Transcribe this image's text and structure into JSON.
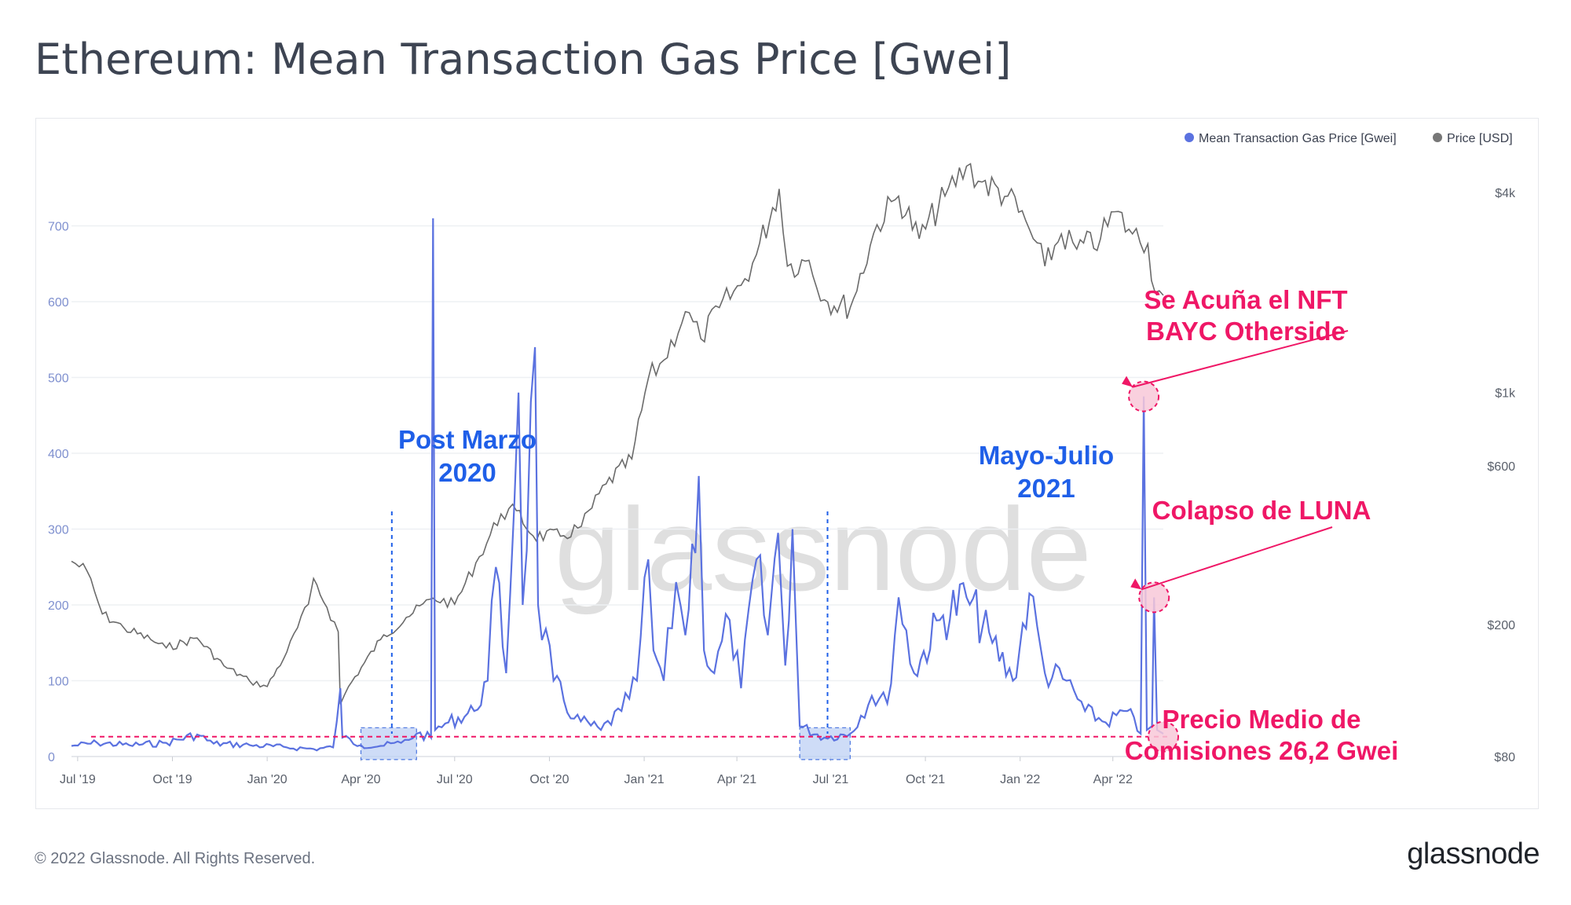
{
  "title": "Ethereum: Mean Transaction Gas Price [Gwei]",
  "footer": {
    "copyright": "© 2022 Glassnode. All Rights Reserved.",
    "logo": "glassnode"
  },
  "watermark": "glassnode",
  "colors": {
    "gas": "#5b72e0",
    "price": "#6b6b6b",
    "pink": "#ef1766",
    "blue": "#1f5fe8"
  },
  "chart_data": {
    "type": "line",
    "legend": [
      {
        "name": "Mean Transaction Gas Price [Gwei]",
        "color": "#5b72e0"
      },
      {
        "name": "Price [USD]",
        "color": "#777777"
      }
    ],
    "legend_placement": "top-right",
    "grid": true,
    "y_left": {
      "ticks": [
        "0",
        "100",
        "200",
        "300",
        "400",
        "500",
        "600",
        "700"
      ],
      "range": [
        0,
        800
      ]
    },
    "y_right": {
      "ticks": [
        "$80",
        "$200",
        "$600",
        "$1k",
        "$4k"
      ],
      "scale": "log"
    },
    "x_ticks": [
      "Jul '19",
      "Oct '19",
      "Jan '20",
      "Apr '20",
      "Jul '20",
      "Oct '20",
      "Jan '21",
      "Apr '21",
      "Jul '21",
      "Oct '21",
      "Jan '22",
      "Apr '22"
    ],
    "x_range": [
      "2019-06-25",
      "2022-05-20"
    ],
    "series": [
      {
        "name": "Mean Transaction Gas Price [Gwei]",
        "axis": "left",
        "points": [
          [
            "2019-06-25",
            14
          ],
          [
            "2019-07-20",
            18
          ],
          [
            "2019-08-20",
            15
          ],
          [
            "2019-09-25",
            18
          ],
          [
            "2019-10-25",
            29
          ],
          [
            "2019-11-10",
            17
          ],
          [
            "2019-12-15",
            15
          ],
          [
            "2020-01-20",
            12
          ],
          [
            "2020-02-15",
            10
          ],
          [
            "2020-03-05",
            12
          ],
          [
            "2020-03-12",
            90
          ],
          [
            "2020-03-14",
            25
          ],
          [
            "2020-04-01",
            15
          ],
          [
            "2020-04-20",
            14
          ],
          [
            "2020-05-10",
            18
          ],
          [
            "2020-05-25",
            30
          ],
          [
            "2020-06-08",
            25
          ],
          [
            "2020-06-10",
            710
          ],
          [
            "2020-06-12",
            35
          ],
          [
            "2020-06-25",
            45
          ],
          [
            "2020-07-20",
            60
          ],
          [
            "2020-08-02",
            100
          ],
          [
            "2020-08-10",
            250
          ],
          [
            "2020-08-20",
            110
          ],
          [
            "2020-09-01",
            480
          ],
          [
            "2020-09-05",
            200
          ],
          [
            "2020-09-17",
            540
          ],
          [
            "2020-09-20",
            200
          ],
          [
            "2020-10-05",
            100
          ],
          [
            "2020-10-25",
            50
          ],
          [
            "2020-11-20",
            35
          ],
          [
            "2020-12-10",
            60
          ],
          [
            "2020-12-25",
            100
          ],
          [
            "2021-01-05",
            260
          ],
          [
            "2021-01-10",
            140
          ],
          [
            "2021-01-20",
            100
          ],
          [
            "2021-02-01",
            230
          ],
          [
            "2021-02-10",
            160
          ],
          [
            "2021-02-23",
            370
          ],
          [
            "2021-02-28",
            140
          ],
          [
            "2021-03-10",
            110
          ],
          [
            "2021-03-25",
            180
          ],
          [
            "2021-04-05",
            90
          ],
          [
            "2021-04-20",
            260
          ],
          [
            "2021-05-01",
            160
          ],
          [
            "2021-05-11",
            295
          ],
          [
            "2021-05-18",
            120
          ],
          [
            "2021-05-25",
            300
          ],
          [
            "2021-06-01",
            40
          ],
          [
            "2021-06-25",
            25
          ],
          [
            "2021-07-20",
            30
          ],
          [
            "2021-08-10",
            80
          ],
          [
            "2021-08-25",
            70
          ],
          [
            "2021-09-05",
            210
          ],
          [
            "2021-09-20",
            110
          ],
          [
            "2021-10-15",
            180
          ],
          [
            "2021-11-10",
            210
          ],
          [
            "2021-12-05",
            150
          ],
          [
            "2021-12-25",
            100
          ],
          [
            "2022-01-10",
            215
          ],
          [
            "2022-01-25",
            110
          ],
          [
            "2022-02-15",
            100
          ],
          [
            "2022-03-05",
            60
          ],
          [
            "2022-03-25",
            45
          ],
          [
            "2022-04-15",
            60
          ],
          [
            "2022-04-28",
            30
          ],
          [
            "2022-05-01",
            475
          ],
          [
            "2022-05-04",
            35
          ],
          [
            "2022-05-09",
            40
          ],
          [
            "2022-05-11",
            210
          ],
          [
            "2022-05-14",
            35
          ],
          [
            "2022-05-20",
            30
          ]
        ]
      },
      {
        "name": "Price [USD]",
        "axis": "right",
        "points": [
          [
            "2019-06-25",
            310
          ],
          [
            "2019-07-10",
            290
          ],
          [
            "2019-07-25",
            215
          ],
          [
            "2019-08-15",
            195
          ],
          [
            "2019-09-10",
            180
          ],
          [
            "2019-09-25",
            170
          ],
          [
            "2019-10-25",
            182
          ],
          [
            "2019-11-20",
            150
          ],
          [
            "2019-12-15",
            135
          ],
          [
            "2020-01-01",
            130
          ],
          [
            "2020-01-20",
            165
          ],
          [
            "2020-02-10",
            230
          ],
          [
            "2020-02-15",
            275
          ],
          [
            "2020-02-28",
            225
          ],
          [
            "2020-03-10",
            190
          ],
          [
            "2020-03-12",
            115
          ],
          [
            "2020-03-20",
            130
          ],
          [
            "2020-04-20",
            180
          ],
          [
            "2020-05-15",
            210
          ],
          [
            "2020-06-10",
            240
          ],
          [
            "2020-07-01",
            230
          ],
          [
            "2020-07-25",
            320
          ],
          [
            "2020-08-15",
            430
          ],
          [
            "2020-08-30",
            440
          ],
          [
            "2020-09-15",
            370
          ],
          [
            "2020-10-15",
            370
          ],
          [
            "2020-11-01",
            395
          ],
          [
            "2020-11-25",
            530
          ],
          [
            "2020-12-20",
            630
          ],
          [
            "2021-01-05",
            1100
          ],
          [
            "2021-01-20",
            1250
          ],
          [
            "2021-02-10",
            1750
          ],
          [
            "2021-02-25",
            1450
          ],
          [
            "2021-03-15",
            1800
          ],
          [
            "2021-04-05",
            2100
          ],
          [
            "2021-04-20",
            2600
          ],
          [
            "2021-05-12",
            4100
          ],
          [
            "2021-05-20",
            2400
          ],
          [
            "2021-06-10",
            2500
          ],
          [
            "2021-06-25",
            1900
          ],
          [
            "2021-07-20",
            1800
          ],
          [
            "2021-08-15",
            3200
          ],
          [
            "2021-09-05",
            3900
          ],
          [
            "2021-09-25",
            2900
          ],
          [
            "2021-10-20",
            3900
          ],
          [
            "2021-11-10",
            4800
          ],
          [
            "2021-11-25",
            4300
          ],
          [
            "2021-12-20",
            3900
          ],
          [
            "2022-01-10",
            3100
          ],
          [
            "2022-01-25",
            2400
          ],
          [
            "2022-02-10",
            3000
          ],
          [
            "2022-02-25",
            2700
          ],
          [
            "2022-03-20",
            2900
          ],
          [
            "2022-04-03",
            3500
          ],
          [
            "2022-04-20",
            3000
          ],
          [
            "2022-05-05",
            2800
          ],
          [
            "2022-05-12",
            2000
          ],
          [
            "2022-05-20",
            1960
          ]
        ]
      }
    ],
    "reference_line": {
      "value": 26.2,
      "label": "Precio Medio de Comisiones 26,2 Gwei"
    },
    "highlight_ranges": [
      {
        "from": "2020-04-01",
        "to": "2020-05-25",
        "label": "Post Marzo 2020"
      },
      {
        "from": "2021-06-01",
        "to": "2021-07-20",
        "label": "Mayo-Julio 2021"
      }
    ],
    "annotations": [
      {
        "line1": "Post Marzo",
        "line2": "2020",
        "color": "blue"
      },
      {
        "line1": "Mayo-Julio",
        "line2": "2021",
        "color": "blue"
      },
      {
        "line1": "Se Acuña el NFT",
        "line2": "BAYC Otherside",
        "color": "pink",
        "target_date": "2022-05-01",
        "target_value": 475
      },
      {
        "line1": "Colapso de LUNA",
        "line2": "",
        "color": "pink",
        "target_date": "2022-05-11",
        "target_value": 210
      },
      {
        "line1": "Precio Medio de",
        "line2": "Comisiones 26,2 Gwei",
        "color": "pink",
        "target_date": "2022-05-20",
        "target_value": 26.2
      }
    ]
  }
}
